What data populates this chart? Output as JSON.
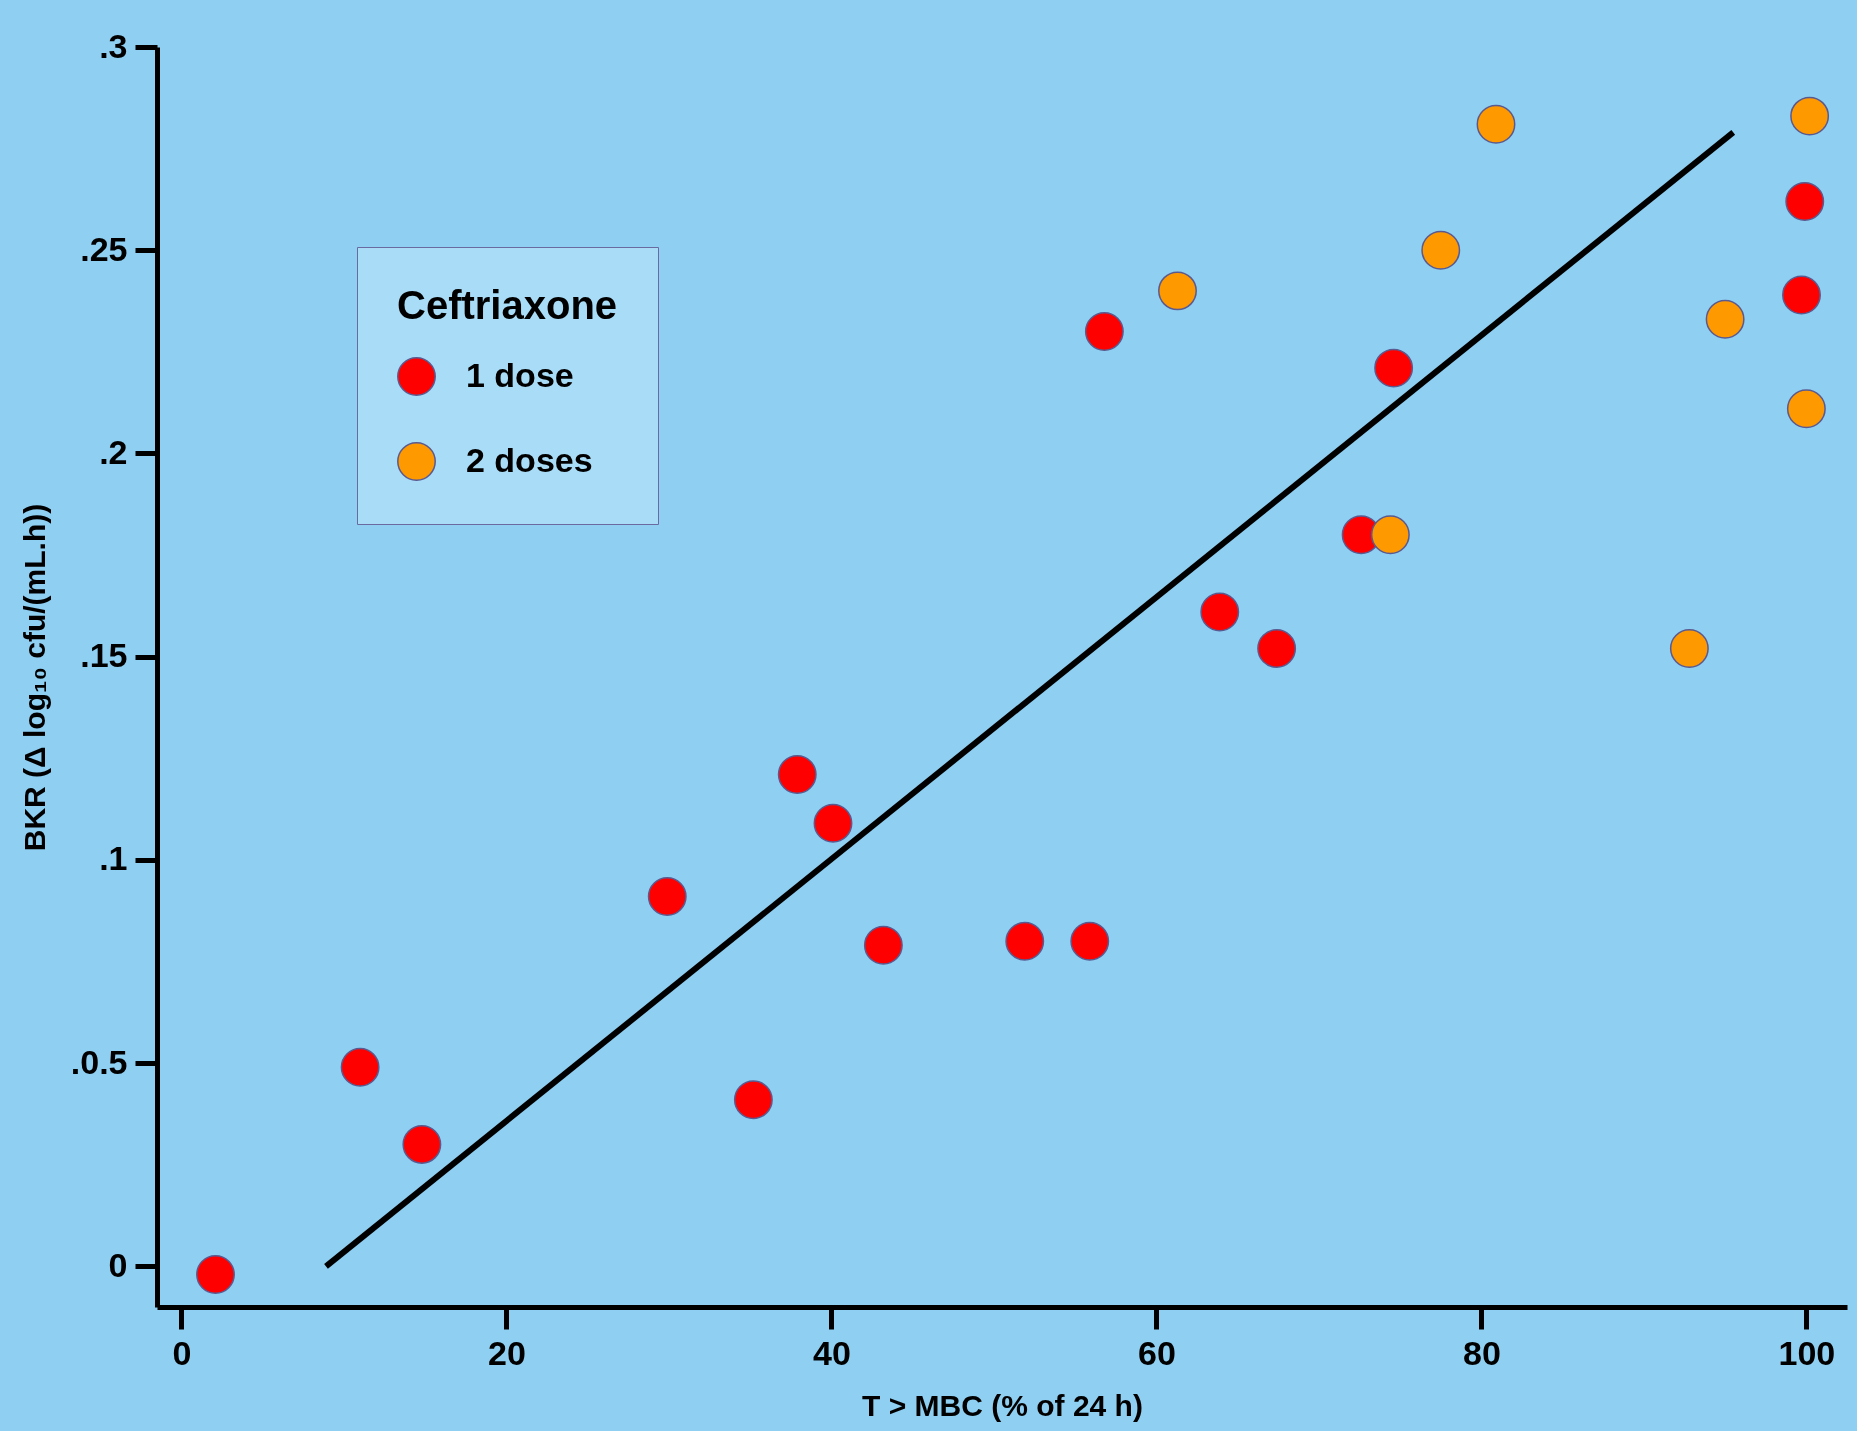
{
  "chart_data": {
    "type": "scatter",
    "xlabel": "T > MBC (% of 24 h)",
    "ylabel": "BKR (Δ log₁₀ cfu/(mL.h))",
    "legend_title": "Ceftriaxone",
    "legend": "top left",
    "grid": false,
    "xlim": [
      -1.5,
      102.5
    ],
    "ylim": [
      -0.01,
      0.3
    ],
    "xticks": [
      0,
      20,
      40,
      60,
      80,
      100
    ],
    "yticks": [
      {
        "value": 0,
        "label": "0"
      },
      {
        "value": 0.05,
        "label": ".0.5"
      },
      {
        "value": 0.1,
        "label": ".1"
      },
      {
        "value": 0.15,
        "label": ".15"
      },
      {
        "value": 0.2,
        "label": ".2"
      },
      {
        "value": 0.25,
        "label": ".25"
      },
      {
        "value": 0.3,
        "label": ".3"
      }
    ],
    "series": [
      {
        "name": "1 dose",
        "color": "#ff0000",
        "marker": "circle",
        "x": [
          2.1,
          11.0,
          14.8,
          29.9,
          35.2,
          37.9,
          40.1,
          43.2,
          51.9,
          55.9,
          56.8,
          63.9,
          67.4,
          72.6,
          74.6,
          99.7,
          99.9
        ],
        "values": [
          -0.002,
          0.049,
          0.03,
          0.091,
          0.041,
          0.121,
          0.109,
          0.079,
          0.08,
          0.08,
          0.23,
          0.161,
          0.152,
          0.18,
          0.221,
          0.239,
          0.262
        ]
      },
      {
        "name": "2 doses",
        "color": "#ff9900",
        "marker": "circle",
        "x": [
          61.3,
          74.4,
          77.5,
          80.9,
          92.8,
          95.0,
          100.0,
          100.2
        ],
        "values": [
          0.24,
          0.18,
          0.25,
          0.281,
          0.152,
          0.233,
          0.211,
          0.283
        ]
      },
      {
        "type": "line",
        "color": "#000000",
        "marker": "none",
        "line_style": "solid",
        "x": [
          8.9,
          95.5
        ],
        "values": [
          0,
          0.279
        ]
      }
    ]
  }
}
